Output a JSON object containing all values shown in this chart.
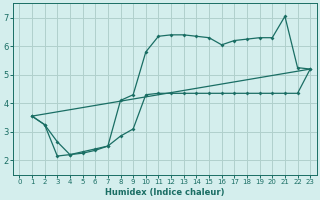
{
  "xlabel": "Humidex (Indice chaleur)",
  "bg_color": "#d4eeed",
  "grid_color": "#b0d0cc",
  "line_color": "#1a6e64",
  "xlim": [
    -0.5,
    23.5
  ],
  "ylim": [
    1.5,
    7.5
  ],
  "xticks": [
    0,
    1,
    2,
    3,
    4,
    5,
    6,
    7,
    8,
    9,
    10,
    11,
    12,
    13,
    14,
    15,
    16,
    17,
    18,
    19,
    20,
    21,
    22,
    23
  ],
  "yticks": [
    2,
    3,
    4,
    5,
    6,
    7
  ],
  "line1_x": [
    1,
    2,
    3,
    4,
    5,
    6,
    7,
    8,
    9,
    10,
    11,
    12,
    13,
    14,
    15,
    16,
    17,
    18,
    19,
    20,
    21,
    22,
    23
  ],
  "line1_y": [
    3.55,
    3.25,
    2.15,
    2.2,
    2.3,
    2.4,
    2.5,
    4.1,
    4.3,
    5.8,
    6.35,
    6.4,
    6.4,
    6.35,
    6.3,
    6.05,
    6.2,
    6.25,
    6.3,
    6.3,
    7.05,
    5.25,
    5.2
  ],
  "line2_x": [
    1,
    2,
    3,
    4,
    5,
    6,
    7,
    8,
    9,
    10,
    11,
    12,
    13,
    14,
    15,
    16,
    17,
    18,
    19,
    20,
    21,
    22,
    23
  ],
  "line2_y": [
    3.55,
    3.25,
    2.65,
    2.2,
    2.25,
    2.35,
    2.5,
    2.85,
    3.1,
    4.3,
    4.35,
    4.35,
    4.35,
    4.35,
    4.35,
    4.35,
    4.35,
    4.35,
    4.35,
    4.35,
    4.35,
    4.35,
    5.2
  ],
  "line3_x": [
    1,
    23
  ],
  "line3_y": [
    3.55,
    5.2
  ]
}
